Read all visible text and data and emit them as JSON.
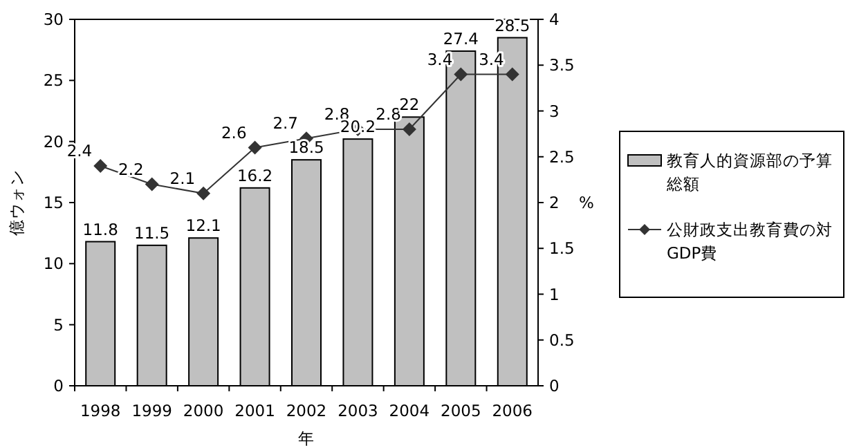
{
  "chart_data": {
    "type": "bar",
    "categories": [
      "1998",
      "1999",
      "2000",
      "2001",
      "2002",
      "2003",
      "2004",
      "2005",
      "2006"
    ],
    "series": [
      {
        "name": "教育人的資源部の予算総額",
        "color": "#c0c0c0",
        "values": [
          11.8,
          11.5,
          12.1,
          16.2,
          18.5,
          20.2,
          22,
          27.4,
          28.5
        ]
      },
      {
        "name": "公財政支出教育費の対GDP費",
        "type": "line",
        "axis": "y2",
        "color": "#333333",
        "marker": "diamond",
        "values": [
          2.4,
          2.2,
          2.1,
          2.6,
          2.7,
          2.8,
          2.8,
          3.4,
          3.4
        ]
      }
    ],
    "xlabel": "年",
    "ylabel": "億ウォン",
    "y2label": "%",
    "ylim": [
      0,
      30
    ],
    "yticks": [
      0,
      5,
      10,
      15,
      20,
      25,
      30
    ],
    "y2lim": [
      0,
      4
    ],
    "y2ticks": [
      0,
      0.5,
      1,
      1.5,
      2,
      2.5,
      3,
      3.5,
      4
    ],
    "data_labels": true,
    "legend": "right",
    "grid": false
  }
}
